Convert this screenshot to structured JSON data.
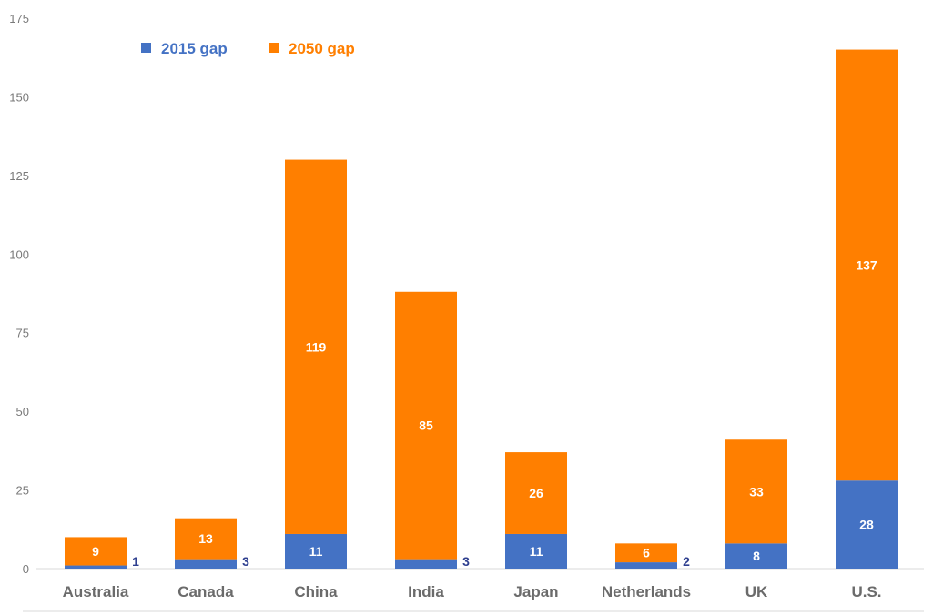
{
  "chart_data": {
    "type": "bar",
    "stacked": true,
    "categories": [
      "Australia",
      "Canada",
      "China",
      "India",
      "Japan",
      "Netherlands",
      "UK",
      "U.S."
    ],
    "series": [
      {
        "name": "2015 gap",
        "color": "#4472c4",
        "values": [
          1,
          3,
          11,
          3,
          11,
          2,
          8,
          28
        ]
      },
      {
        "name": "2050 gap",
        "color": "#ff7f00",
        "values": [
          9,
          13,
          119,
          85,
          26,
          6,
          33,
          137
        ]
      }
    ],
    "ylim": [
      0,
      175
    ],
    "yticks": [
      0,
      25,
      50,
      75,
      100,
      125,
      150,
      175
    ],
    "legend_position": "top-left",
    "grid": false
  }
}
